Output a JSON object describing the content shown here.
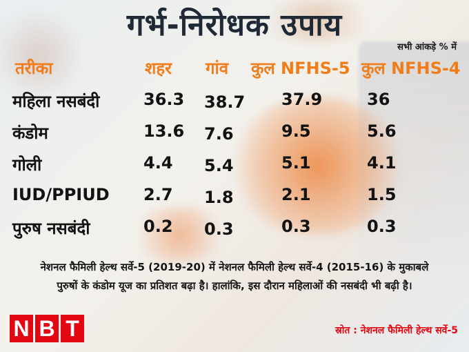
{
  "title": "गर्भ-निरोधक उपाय",
  "note": "सभी आंकड़े % में",
  "chart_data": {
    "type": "table",
    "row_header": "तरीका",
    "columns": [
      "शहर",
      "गांव",
      "कुल NFHS-5",
      "कुल NFHS-4"
    ],
    "rows": [
      {
        "label": "महिला नसबंदी",
        "values": [
          "36.3",
          "38.7",
          "37.9",
          "36"
        ]
      },
      {
        "label": "कंडोम",
        "values": [
          "13.6",
          "7.6",
          "9.5",
          "5.6"
        ]
      },
      {
        "label": "गोली",
        "values": [
          "4.4",
          "5.4",
          "5.1",
          "4.1"
        ]
      },
      {
        "label": "IUD/PPIUD",
        "values": [
          "2.7",
          "1.8",
          "2.1",
          "1.5"
        ]
      },
      {
        "label": "पुरुष नसबंदी",
        "values": [
          "0.2",
          "0.3",
          "0.3",
          "0.3"
        ]
      }
    ]
  },
  "footnote": [
    "नेशनल फैमिली हेल्थ सर्वे-5 (2019-20) में नेशनल फैमिली हेल्थ सर्वे-4 (2015-16) के मुकाबले",
    "पुरुषों के कंडोम यूज का प्रतिशत बढ़ा है। हालांकि, इस दौरान महिलाओं की नसबंदी भी बढ़ी है।"
  ],
  "logo": [
    "N",
    "B",
    "T"
  ],
  "source": "स्रोत : नेशनल फैमिली हेल्थ सर्वे-5",
  "colors": {
    "header": "#f07d1a",
    "logo": "#e30613",
    "title": "#1f2a36"
  }
}
